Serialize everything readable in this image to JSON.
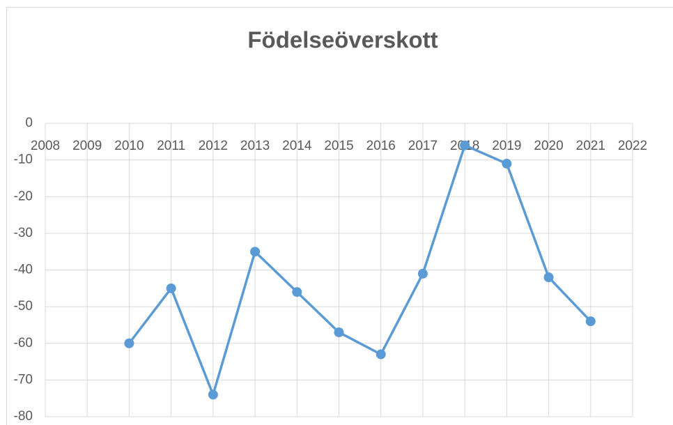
{
  "chart_data": {
    "type": "line",
    "title": "Födelseöverskott",
    "x": [
      2010,
      2011,
      2012,
      2013,
      2014,
      2015,
      2016,
      2017,
      2018,
      2019,
      2020,
      2021
    ],
    "series": [
      {
        "color": "#5b9bd5",
        "values": [
          -60,
          -45,
          -74,
          -35,
          -46,
          -57,
          -63,
          -41,
          -6,
          -11,
          -42,
          -54
        ]
      }
    ],
    "xlim": [
      2008,
      2022
    ],
    "xticks": [
      2008,
      2009,
      2010,
      2011,
      2012,
      2013,
      2014,
      2015,
      2016,
      2017,
      2018,
      2019,
      2020,
      2021,
      2022
    ],
    "ylim": [
      -80,
      0
    ],
    "yticks": [
      -80,
      -70,
      -60,
      -50,
      -40,
      -30,
      -20,
      -10,
      0
    ],
    "grid": true
  }
}
